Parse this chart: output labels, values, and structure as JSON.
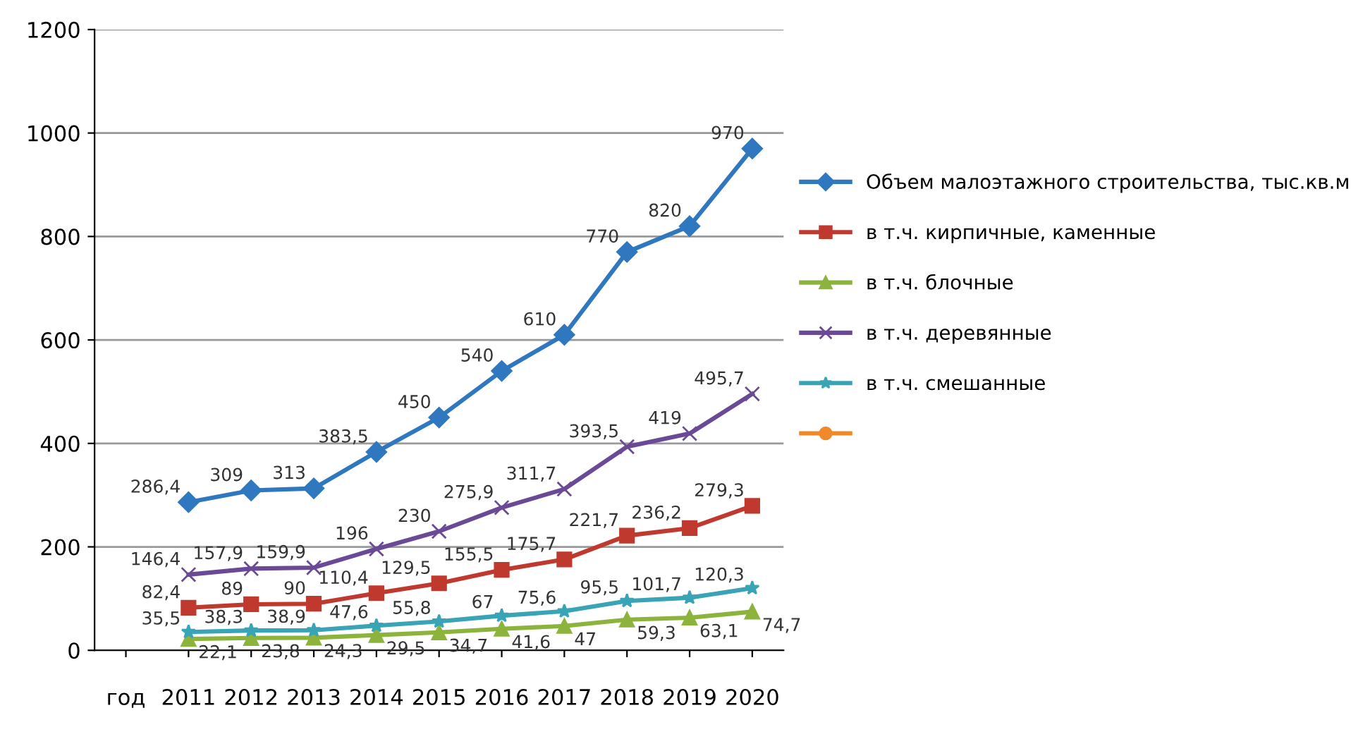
{
  "chart_data": {
    "type": "line",
    "categories": [
      "год",
      "2011",
      "2012",
      "2013",
      "2014",
      "2015",
      "2016",
      "2017",
      "2018",
      "2019",
      "2020"
    ],
    "series": [
      {
        "name": "Объем малоэтажного строительства, тыс.кв.м",
        "color": "#2f78c0",
        "marker": "diamond",
        "values": [
          null,
          286.4,
          309,
          313,
          383.5,
          450,
          540,
          610,
          770,
          820,
          970
        ],
        "value_labels": [
          null,
          "286,4",
          "309",
          "313",
          "383,5",
          "450",
          "540",
          "610",
          "770",
          "820",
          "970"
        ]
      },
      {
        "name": "в т.ч. кирпичные, каменные",
        "color": "#c0392f",
        "marker": "square",
        "values": [
          null,
          82.4,
          89,
          90,
          110.4,
          129.5,
          155.5,
          175.7,
          221.7,
          236.2,
          279.3
        ],
        "value_labels": [
          null,
          "82,4",
          "89",
          "90",
          "110,4",
          "129,5",
          "155,5",
          "175,7",
          "221,7",
          "236,2",
          "279,3"
        ]
      },
      {
        "name": "в т.ч. блочные",
        "color": "#8cb43c",
        "marker": "triangle",
        "values": [
          null,
          22.1,
          23.8,
          24.3,
          29.5,
          34.7,
          41.6,
          47,
          59.3,
          63.1,
          74.7
        ],
        "value_labels": [
          null,
          "22,1",
          "23,8",
          "24,3",
          "29,5",
          "34,7",
          "41,6",
          "47",
          "59,3",
          "63,1",
          "74,7"
        ]
      },
      {
        "name": "в т.ч. деревянные",
        "color": "#6a4a96",
        "marker": "cross",
        "values": [
          null,
          146.4,
          157.9,
          159.9,
          196,
          230,
          275.9,
          311.7,
          393.5,
          419,
          495.7
        ],
        "value_labels": [
          null,
          "146,4",
          "157,9",
          "159,9",
          "196",
          "230",
          "275,9",
          "311,7",
          "393,5",
          "419",
          "495,7"
        ]
      },
      {
        "name": "в т.ч. смешанные",
        "color": "#38a4b6",
        "marker": "star",
        "values": [
          null,
          35.5,
          38.3,
          38.9,
          47.6,
          55.8,
          67,
          75.6,
          95.5,
          101.7,
          120.3
        ],
        "value_labels": [
          null,
          "35,5",
          "38,3",
          "38,9",
          "47,6",
          "55,8",
          "67",
          "75,6",
          "95,5",
          "101,7",
          "120,3"
        ]
      },
      {
        "color": "#f0892a",
        "marker": "circle",
        "values": [
          null,
          null,
          null,
          null,
          null,
          null,
          null,
          null,
          null,
          null,
          null
        ]
      }
    ],
    "ylim": [
      0,
      1200
    ],
    "yticks": [
      0,
      200,
      400,
      600,
      800,
      1000,
      1200
    ],
    "grid": "y",
    "legend": "right",
    "line_style": "solid"
  }
}
